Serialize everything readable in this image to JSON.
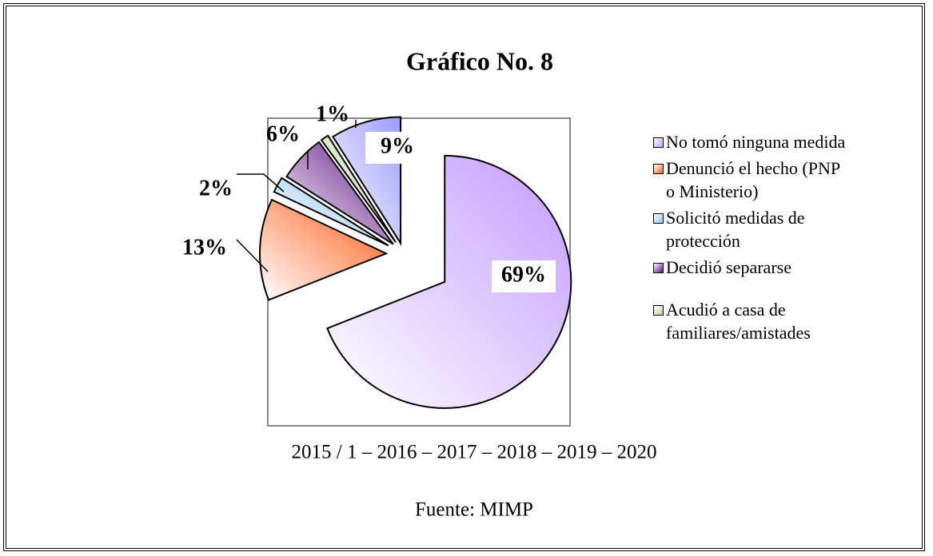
{
  "chart_data": {
    "type": "pie",
    "title": "Gráfico No. 8",
    "subtitle": "2015 / 1 – 2016 – 2017 – 2018 – 2019 – 2020",
    "source": "Fuente: MIMP",
    "categories": [
      "No tomó ninguna medida",
      "Denunció el hecho (PNP o Ministerio)",
      "Solicitó medidas de protección",
      "Decidió separarse",
      "Acudió a casa de familiares/amistades",
      null
    ],
    "values": [
      69,
      13,
      2,
      6,
      1,
      9
    ],
    "value_labels": [
      "69%",
      "13%",
      "2%",
      "6%",
      "1%",
      "9%"
    ],
    "colors": [
      "#c39bff",
      "#ff5a14",
      "#8fc3ef",
      "#5a0a80",
      "#b8d49a",
      "#9a9cff"
    ],
    "legend": "right"
  }
}
